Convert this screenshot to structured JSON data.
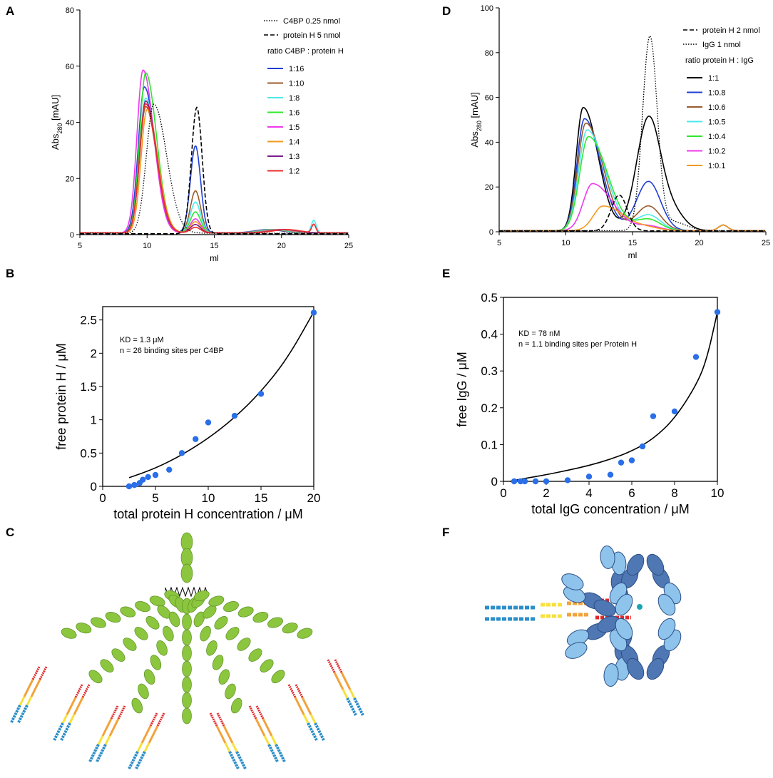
{
  "panels": {
    "A": "A",
    "B": "B",
    "C": "C",
    "D": "D",
    "E": "E",
    "F": "F"
  },
  "colors": {
    "blue": "#1f3fd6",
    "brown": "#9c5a2c",
    "cyan": "#4de8ee",
    "green": "#2ee82e",
    "magenta": "#ee38ee",
    "orange": "#f39a1e",
    "purple": "#7b1e8c",
    "red": "#ee2b2b",
    "black": "#000000",
    "dots": "#2a6fe8",
    "leaf_green": "#8cc63f",
    "ig_blue": "#4a78b8"
  },
  "chart_data": [
    {
      "id": "A",
      "type": "line",
      "xlabel": "ml",
      "ylabel_main": "Abs",
      "ylabel_sub": "280",
      "ylabel_unit": " [mAU]",
      "xlim": [
        5,
        25
      ],
      "ylim": [
        0,
        80
      ],
      "xticks": [
        "5",
        "10",
        "15",
        "20",
        "25"
      ],
      "yticks": [
        "0",
        "20",
        "40",
        "60",
        "80"
      ],
      "legend_reference": [
        {
          "label": "C4BP 0.25 nmol",
          "style": "dotted"
        },
        {
          "label": "protein H 5 nmol",
          "style": "dashed"
        }
      ],
      "legend_title": "ratio C4BP : protein H",
      "series": [
        {
          "name": "1:16",
          "color": "blue",
          "peak1": [
            9.8,
            52
          ],
          "peak2": [
            13.6,
            31
          ]
        },
        {
          "name": "1:10",
          "color": "brown",
          "peak1": [
            9.9,
            45
          ],
          "peak2": [
            13.6,
            15
          ]
        },
        {
          "name": "1:8",
          "color": "cyan",
          "peak1": [
            9.9,
            48
          ],
          "peak2": [
            13.6,
            11
          ]
        },
        {
          "name": "1:6",
          "color": "green",
          "peak1": [
            9.9,
            57
          ],
          "peak2": [
            13.6,
            7.5
          ]
        },
        {
          "name": "1:5",
          "color": "magenta",
          "peak1": [
            9.7,
            58
          ],
          "peak2": [
            13.6,
            5
          ]
        },
        {
          "name": "1:4",
          "color": "orange",
          "peak1": [
            10.0,
            44
          ],
          "peak2": [
            13.6,
            4
          ]
        },
        {
          "name": "1:3",
          "color": "purple",
          "peak1": [
            9.9,
            47
          ],
          "peak2": [
            13.6,
            3
          ]
        },
        {
          "name": "1:2",
          "color": "red",
          "peak1": [
            9.9,
            46
          ],
          "peak2": [
            13.6,
            2
          ]
        }
      ],
      "reference_peaks": {
        "c4bp": [
          10.5,
          46
        ],
        "protein_h": [
          13.7,
          45
        ]
      }
    },
    {
      "id": "D",
      "type": "line",
      "xlabel": "ml",
      "ylabel_main": "Abs",
      "ylabel_sub": "280",
      "ylabel_unit": " [mAU]",
      "xlim": [
        5,
        25
      ],
      "ylim": [
        0,
        100
      ],
      "xticks": [
        "5",
        "10",
        "15",
        "20",
        "25"
      ],
      "yticks": [
        "0",
        "20",
        "40",
        "60",
        "80",
        "100"
      ],
      "legend_reference": [
        {
          "label": "protein H 2 nmol",
          "style": "dashed"
        },
        {
          "label": "IgG 1 nmol",
          "style": "dotted"
        }
      ],
      "legend_title": "ratio protein H : IgG",
      "series": [
        {
          "name": "1:1",
          "color": "black",
          "peak1": [
            11.3,
            55
          ],
          "peak2": [
            16.2,
            50
          ]
        },
        {
          "name": "1:0.8",
          "color": "blue",
          "peak1": [
            11.4,
            50
          ],
          "peak2": [
            16.2,
            22
          ]
        },
        {
          "name": "1:0.6",
          "color": "brown",
          "peak1": [
            11.5,
            48
          ],
          "peak2": [
            16.2,
            11
          ]
        },
        {
          "name": "1:0.5",
          "color": "cyan",
          "peak1": [
            11.6,
            45
          ],
          "peak2": [
            16.2,
            7
          ]
        },
        {
          "name": "1:0.4",
          "color": "green",
          "peak1": [
            11.7,
            42
          ],
          "peak2": [
            16.2,
            5
          ]
        },
        {
          "name": "1:0.2",
          "color": "magenta",
          "peak1": [
            12.0,
            21
          ],
          "peak2": [
            16.2,
            2
          ]
        },
        {
          "name": "1:0.1",
          "color": "orange",
          "peak1": [
            12.8,
            11
          ],
          "peak2": [
            16.2,
            1
          ]
        }
      ],
      "reference_peaks": {
        "protein_h": [
          14.0,
          16
        ],
        "igg": [
          16.3,
          86
        ]
      }
    },
    {
      "id": "B",
      "type": "scatter",
      "xlabel": "total protein H concentration / μM",
      "ylabel": "free protein H / μM",
      "xlim": [
        0,
        20
      ],
      "ylim": [
        0,
        2.7
      ],
      "xticks": [
        "0",
        "5",
        "10",
        "15",
        "20"
      ],
      "yticks": [
        "0",
        "0.5",
        "1",
        "1.5",
        "2",
        "2.5"
      ],
      "annotation": [
        "KD = 1.3 μM",
        "n = 26 binding sites per C4BP"
      ],
      "points": [
        [
          2.5,
          0.0
        ],
        [
          3.0,
          0.02
        ],
        [
          3.5,
          0.05
        ],
        [
          3.8,
          0.1
        ],
        [
          4.3,
          0.14
        ],
        [
          5.0,
          0.17
        ],
        [
          6.3,
          0.25
        ],
        [
          7.5,
          0.5
        ],
        [
          8.8,
          0.71
        ],
        [
          10.0,
          0.96
        ],
        [
          12.5,
          1.06
        ],
        [
          15.0,
          1.39
        ],
        [
          20.0,
          2.61
        ]
      ],
      "fit": [
        [
          2.5,
          0.13
        ],
        [
          5,
          0.27
        ],
        [
          7.5,
          0.47
        ],
        [
          10,
          0.72
        ],
        [
          12.5,
          1.03
        ],
        [
          15,
          1.42
        ],
        [
          17.5,
          1.92
        ],
        [
          20,
          2.62
        ]
      ]
    },
    {
      "id": "E",
      "type": "scatter",
      "xlabel": "total IgG concentration / μM",
      "ylabel": "free IgG / μM",
      "xlim": [
        0,
        10
      ],
      "ylim": [
        0,
        0.5
      ],
      "xticks": [
        "0",
        "2",
        "4",
        "6",
        "8",
        "10"
      ],
      "yticks": [
        "0",
        "0.1",
        "0.2",
        "0.3",
        "0.4",
        "0.5"
      ],
      "annotation": [
        "KD = 78 nM",
        "n = 1.1 binding sites per Protein H"
      ],
      "points": [
        [
          0.5,
          0.0
        ],
        [
          0.8,
          0.0
        ],
        [
          1.0,
          0.0
        ],
        [
          1.5,
          0.0
        ],
        [
          2.0,
          0.0
        ],
        [
          3.0,
          0.003
        ],
        [
          4.0,
          0.013
        ],
        [
          5.0,
          0.018
        ],
        [
          5.5,
          0.051
        ],
        [
          6.0,
          0.057
        ],
        [
          6.5,
          0.095
        ],
        [
          7.0,
          0.177
        ],
        [
          8.0,
          0.19
        ],
        [
          9.0,
          0.338
        ],
        [
          10.0,
          0.46
        ]
      ],
      "fit": [
        [
          0.3,
          0.0
        ],
        [
          1,
          0.008
        ],
        [
          2,
          0.018
        ],
        [
          3,
          0.03
        ],
        [
          4,
          0.043
        ],
        [
          5,
          0.06
        ],
        [
          6,
          0.082
        ],
        [
          7,
          0.115
        ],
        [
          8,
          0.17
        ],
        [
          9,
          0.26
        ],
        [
          9.5,
          0.33
        ],
        [
          10,
          0.46
        ]
      ]
    }
  ]
}
